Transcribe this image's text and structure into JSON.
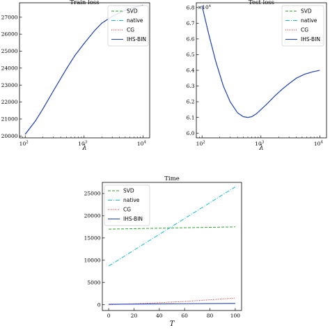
{
  "chart_data": [
    {
      "type": "line",
      "title": "Train loss",
      "xlabel": "λ",
      "ylabel": "",
      "xscale": "log",
      "xlim": [
        80,
        13000
      ],
      "ylim": [
        19890,
        27850
      ],
      "x_ticks": [
        {
          "value": 100,
          "base": "10",
          "exp": "2"
        },
        {
          "value": 1000,
          "base": "10",
          "exp": "3"
        },
        {
          "value": 10000,
          "base": "10",
          "exp": "4"
        }
      ],
      "y_ticks": [
        {
          "value": 20000,
          "label": "20000"
        },
        {
          "value": 21000,
          "label": "21000"
        },
        {
          "value": 22000,
          "label": "22000"
        },
        {
          "value": 23000,
          "label": "23000"
        },
        {
          "value": 24000,
          "label": "24000"
        },
        {
          "value": 25000,
          "label": "25000"
        },
        {
          "value": 26000,
          "label": "26000"
        },
        {
          "value": 27000,
          "label": "27000"
        }
      ],
      "legend_position": "top-right",
      "series": [
        {
          "name": "SVD",
          "color": "#2ca02c",
          "dash": "4,2",
          "x": [
            100,
            150,
            200,
            300,
            500,
            700,
            1000,
            1500,
            2000,
            3000,
            5000,
            7000,
            10000
          ],
          "y": [
            20100,
            20900,
            21600,
            22650,
            23950,
            24750,
            25450,
            26200,
            26650,
            27050,
            27400,
            27580,
            27700
          ]
        },
        {
          "name": "native",
          "color": "#17becf",
          "dash": "6,2,1,2",
          "x": [
            100,
            150,
            200,
            300,
            500,
            700,
            1000,
            1500,
            2000,
            3000,
            5000,
            7000,
            10000
          ],
          "y": [
            20100,
            20900,
            21600,
            22650,
            23950,
            24750,
            25450,
            26200,
            26650,
            27050,
            27400,
            27580,
            27700
          ]
        },
        {
          "name": "CG",
          "color": "#d62728",
          "dash": "1,1.5",
          "x": [
            100,
            150,
            200,
            300,
            500,
            700,
            1000,
            1500,
            2000,
            3000,
            5000,
            7000,
            10000
          ],
          "y": [
            20100,
            20900,
            21600,
            22650,
            23950,
            24750,
            25450,
            26200,
            26650,
            27050,
            27400,
            27580,
            27700
          ]
        },
        {
          "name": "IHS-BIN",
          "color": "#1f3fbf",
          "dash": "",
          "x": [
            100,
            150,
            200,
            300,
            500,
            700,
            1000,
            1500,
            2000,
            3000,
            5000,
            7000,
            10000
          ],
          "y": [
            20100,
            20900,
            21600,
            22650,
            23950,
            24750,
            25450,
            26200,
            26650,
            27050,
            27400,
            27580,
            27700
          ]
        }
      ]
    },
    {
      "type": "line",
      "title": "Test loss",
      "xlabel": "λ",
      "ylabel": "",
      "xscale": "log",
      "xlim": [
        80,
        13000
      ],
      "ylim": [
        59700,
        68300
      ],
      "y_multiplier": {
        "base": "×10",
        "exp": "4"
      },
      "x_ticks": [
        {
          "value": 100,
          "base": "10",
          "exp": "2"
        },
        {
          "value": 1000,
          "base": "10",
          "exp": "3"
        },
        {
          "value": 10000,
          "base": "10",
          "exp": "4"
        }
      ],
      "y_ticks": [
        {
          "value": 60000,
          "label": "6.0"
        },
        {
          "value": 61000,
          "label": "6.1"
        },
        {
          "value": 62000,
          "label": "6.2"
        },
        {
          "value": 63000,
          "label": "6.3"
        },
        {
          "value": 64000,
          "label": "6.4"
        },
        {
          "value": 65000,
          "label": "6.5"
        },
        {
          "value": 66000,
          "label": "6.6"
        },
        {
          "value": 67000,
          "label": "6.7"
        },
        {
          "value": 68000,
          "label": "6.8"
        }
      ],
      "legend_position": "top-right",
      "series": [
        {
          "name": "SVD",
          "color": "#2ca02c",
          "dash": "4,2",
          "x": [
            100,
            130,
            170,
            230,
            300,
            400,
            500,
            600,
            700,
            850,
            1000,
            1300,
            1700,
            2300,
            3000,
            4000,
            5500,
            7500,
            10000
          ],
          "y": [
            68100,
            66300,
            64600,
            63000,
            62000,
            61300,
            61050,
            61000,
            61050,
            61250,
            61500,
            61900,
            62350,
            62800,
            63150,
            63500,
            63750,
            63900,
            64000
          ]
        },
        {
          "name": "native",
          "color": "#17becf",
          "dash": "6,2,1,2",
          "x": [
            100,
            130,
            170,
            230,
            300,
            400,
            500,
            600,
            700,
            850,
            1000,
            1300,
            1700,
            2300,
            3000,
            4000,
            5500,
            7500,
            10000
          ],
          "y": [
            68100,
            66300,
            64600,
            63000,
            62000,
            61300,
            61050,
            61000,
            61050,
            61250,
            61500,
            61900,
            62350,
            62800,
            63150,
            63500,
            63750,
            63900,
            64000
          ]
        },
        {
          "name": "CG",
          "color": "#d62728",
          "dash": "1,1.5",
          "x": [
            100,
            130,
            170,
            230,
            300,
            400,
            500,
            600,
            700,
            850,
            1000,
            1300,
            1700,
            2300,
            3000,
            4000,
            5500,
            7500,
            10000
          ],
          "y": [
            68100,
            66300,
            64600,
            63000,
            62000,
            61300,
            61050,
            61000,
            61050,
            61250,
            61500,
            61900,
            62350,
            62800,
            63150,
            63500,
            63750,
            63900,
            64000
          ]
        },
        {
          "name": "IHS-BIN",
          "color": "#1f3fbf",
          "dash": "",
          "x": [
            100,
            130,
            170,
            230,
            300,
            400,
            500,
            600,
            700,
            850,
            1000,
            1300,
            1700,
            2300,
            3000,
            4000,
            5500,
            7500,
            10000
          ],
          "y": [
            68100,
            66300,
            64600,
            63000,
            62000,
            61300,
            61050,
            61000,
            61050,
            61250,
            61500,
            61900,
            62350,
            62800,
            63150,
            63500,
            63750,
            63900,
            64000
          ]
        }
      ]
    },
    {
      "type": "line",
      "title": "Time",
      "xlabel": "T",
      "ylabel": "",
      "xscale": "linear",
      "xlim": [
        -5,
        105
      ],
      "ylim": [
        -1300,
        27500
      ],
      "x_ticks": [
        {
          "value": 0,
          "label": "0"
        },
        {
          "value": 20,
          "label": "20"
        },
        {
          "value": 40,
          "label": "40"
        },
        {
          "value": 60,
          "label": "60"
        },
        {
          "value": 80,
          "label": "80"
        },
        {
          "value": 100,
          "label": "100"
        }
      ],
      "y_ticks": [
        {
          "value": 0,
          "label": "0"
        },
        {
          "value": 5000,
          "label": "5000"
        },
        {
          "value": 10000,
          "label": "10000"
        },
        {
          "value": 15000,
          "label": "15000"
        },
        {
          "value": 20000,
          "label": "20000"
        },
        {
          "value": 25000,
          "label": "25000"
        }
      ],
      "legend_position": "top-left",
      "series": [
        {
          "name": "SVD",
          "color": "#2ca02c",
          "dash": "4,2",
          "x": [
            0,
            100
          ],
          "y": [
            17000,
            17500
          ]
        },
        {
          "name": "native",
          "color": "#17becf",
          "dash": "6,2,1,2",
          "x": [
            0,
            100
          ],
          "y": [
            8700,
            26500
          ]
        },
        {
          "name": "CG",
          "color": "#d62728",
          "dash": "1,1.5",
          "x": [
            0,
            20,
            40,
            60,
            80,
            100
          ],
          "y": [
            0,
            200,
            450,
            750,
            1100,
            1500
          ]
        },
        {
          "name": "IHS-BIN",
          "color": "#1f3fbf",
          "dash": "",
          "x": [
            0,
            50,
            100
          ],
          "y": [
            100,
            200,
            300
          ]
        }
      ]
    }
  ]
}
